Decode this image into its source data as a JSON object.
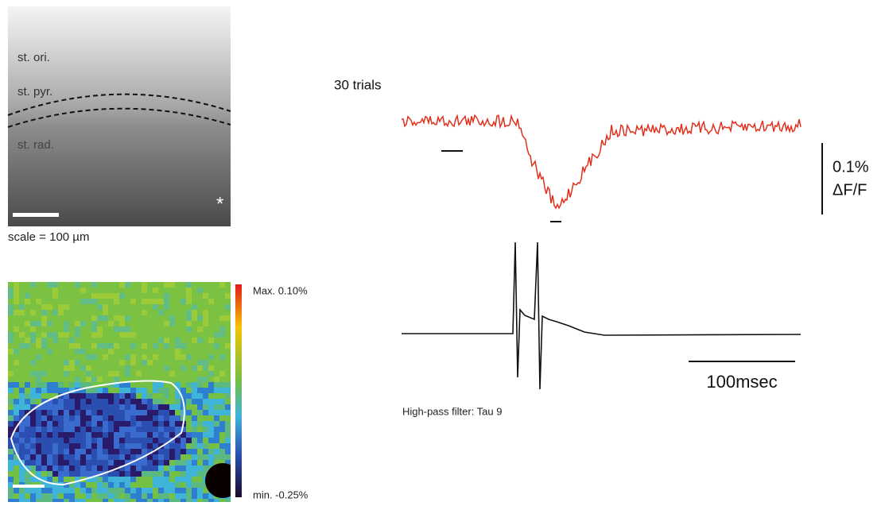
{
  "image_panel": {
    "layers": [
      "st. ori.",
      "st. pyr.",
      "st. rad."
    ],
    "marker": "*",
    "scale_note": "scale = 100 µm"
  },
  "map_panel": {
    "max_label": "Max. 0.10%",
    "min_label": "min. -0.25%"
  },
  "traces": {
    "trials_label": "30 trials",
    "amplitude_label": "0.1%",
    "amplitude_unit": "ΔF/F",
    "time_label": "100msec",
    "filter_note": "High-pass filter: Tau 9"
  }
}
